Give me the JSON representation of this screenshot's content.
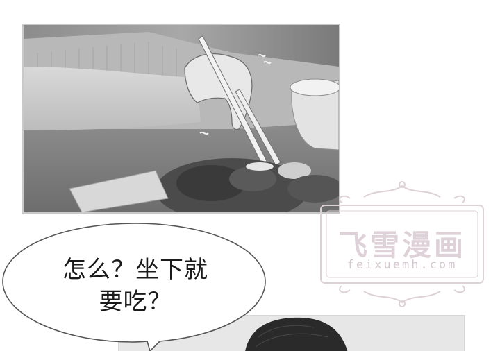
{
  "speech_bubble": {
    "line1": "怎么？坐下就",
    "line2": "要吃？"
  },
  "watermark": {
    "title": "飞雪漫画",
    "url": "feixuemh.com"
  },
  "colors": {
    "watermark": "#ded2d8",
    "bubble_border": "#555555",
    "panel_border": "#c9c9c9"
  }
}
